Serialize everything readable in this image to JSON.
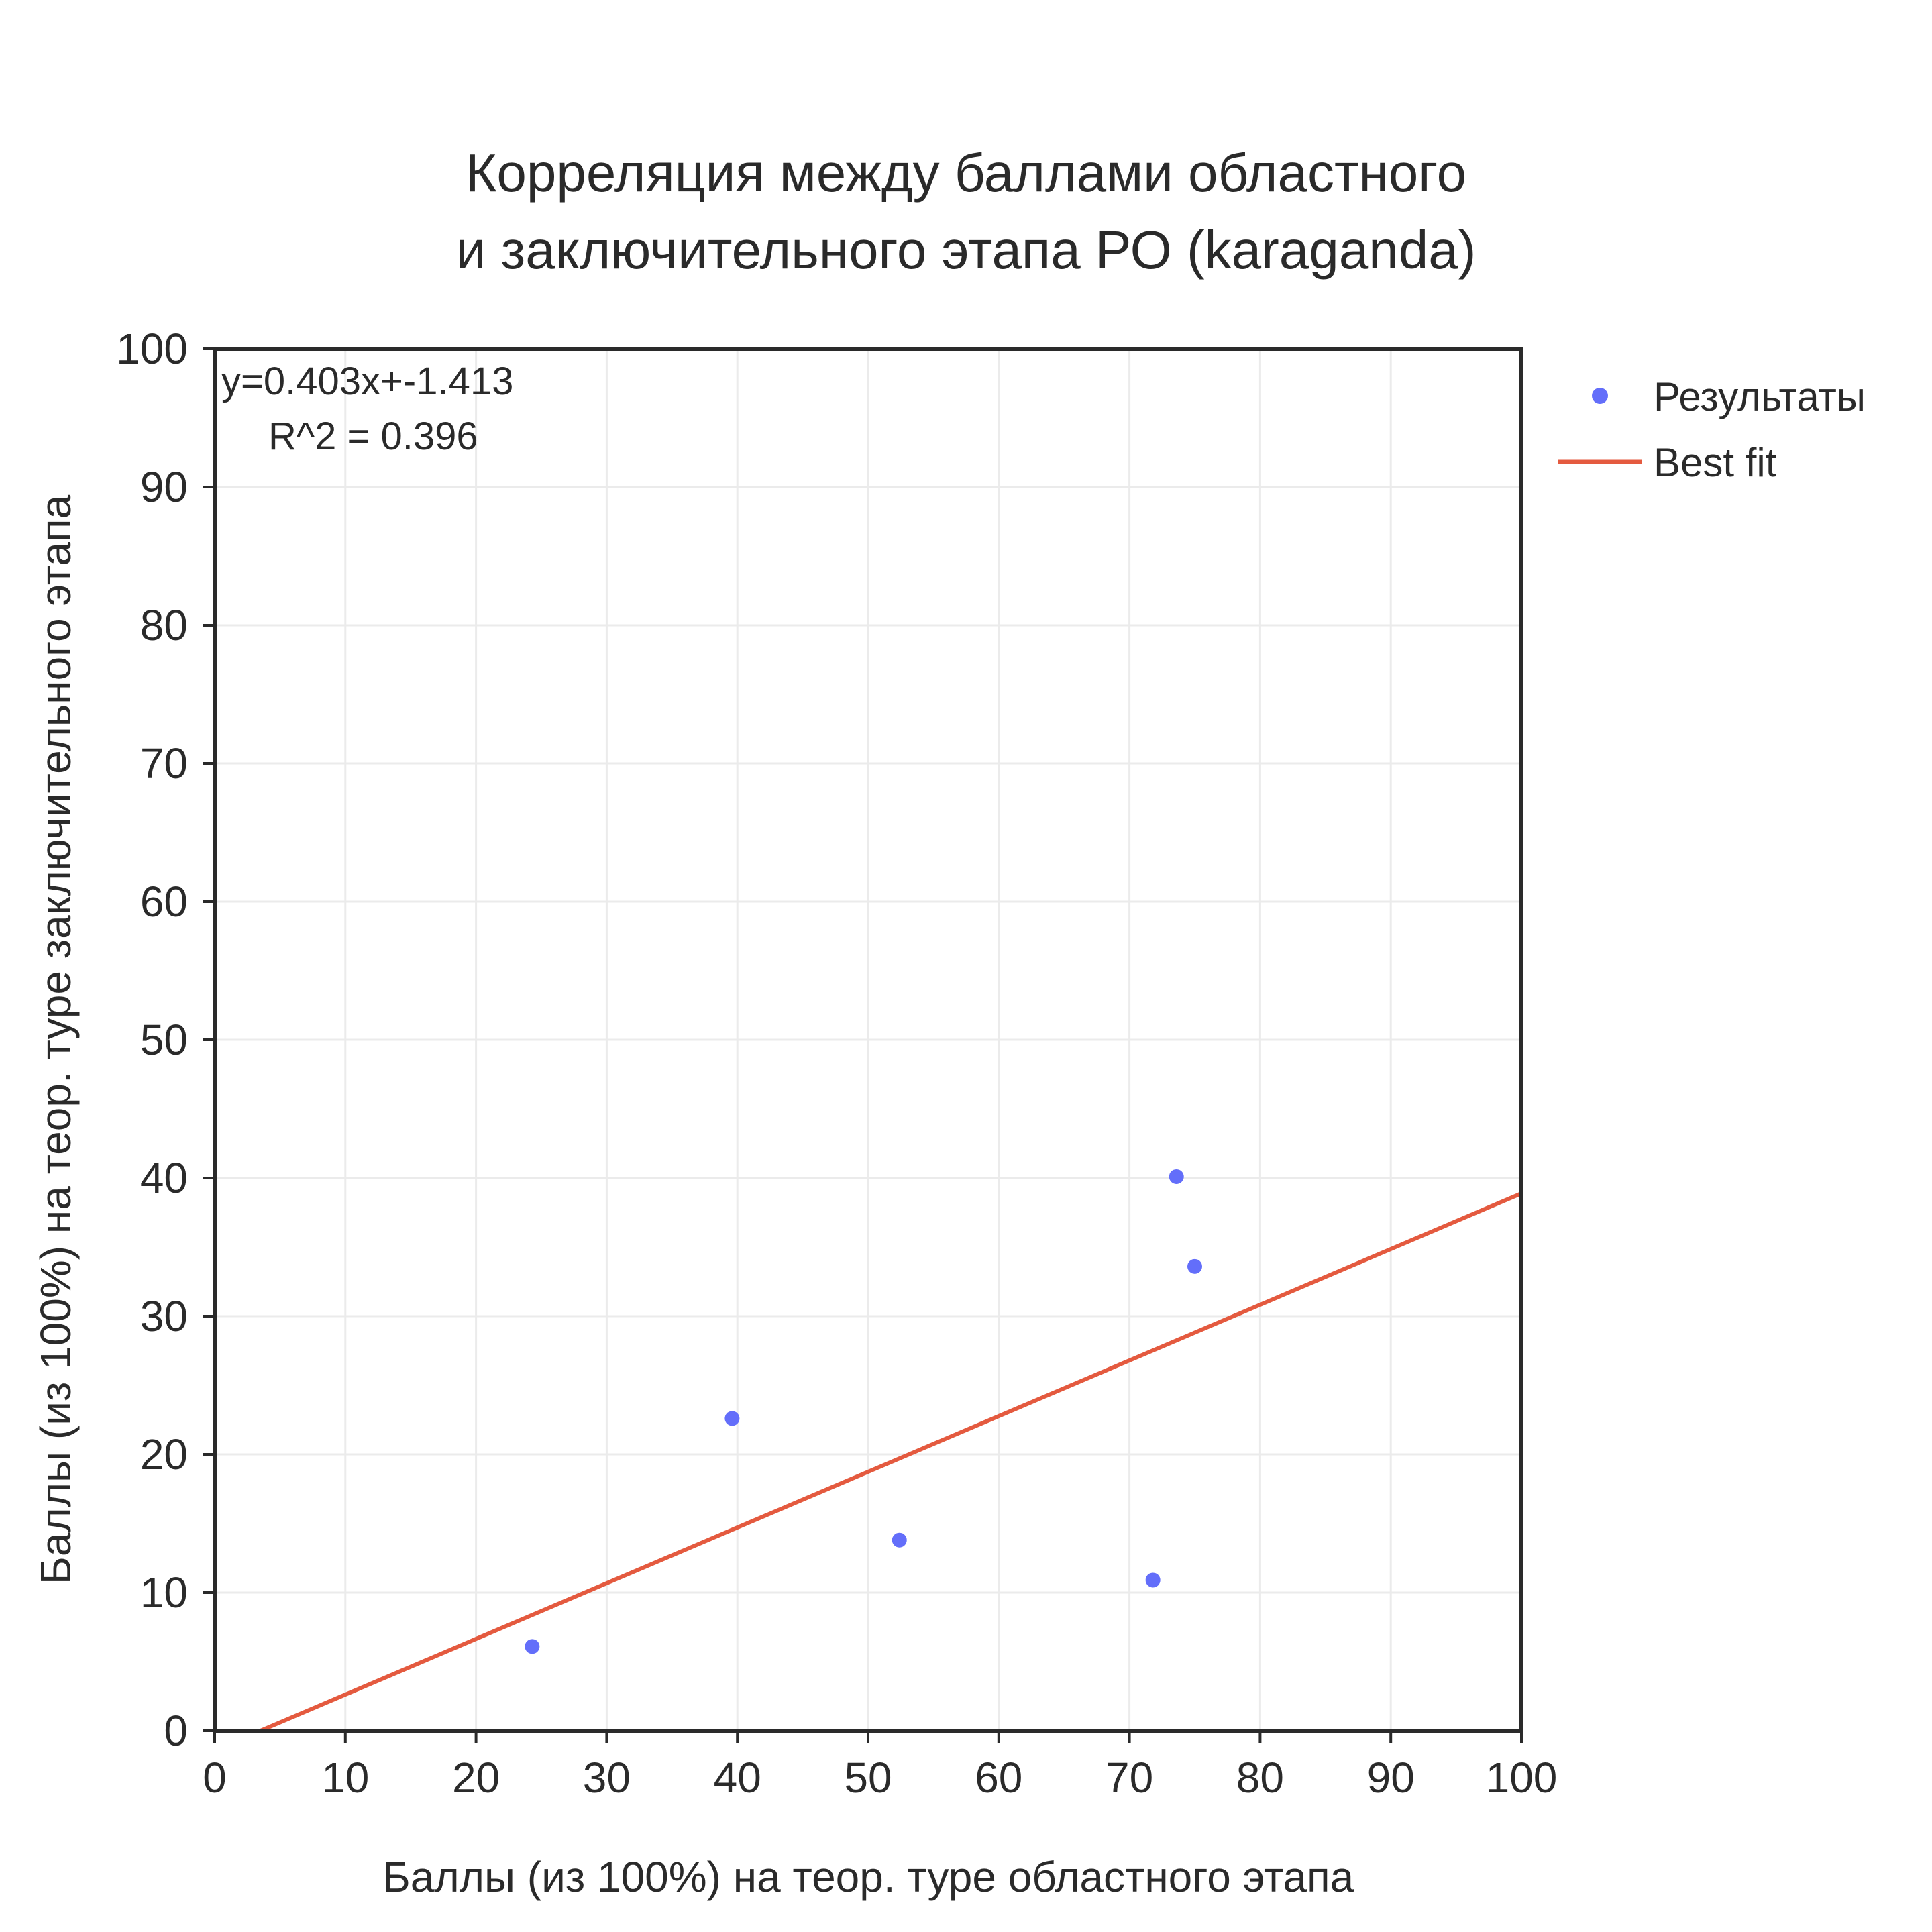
{
  "chart_data": {
    "type": "scatter",
    "title_lines": [
      "Корреляция между баллами областного",
      "и заключительного этапа РО (karaganda)"
    ],
    "xlabel": "Баллы (из 100%) на теор. туре областного этапа",
    "ylabel": "Баллы (из 100%) на теор. туре заключительного этапа",
    "xlim": [
      0,
      100
    ],
    "ylim": [
      0,
      100
    ],
    "xticks": [
      0,
      10,
      20,
      30,
      40,
      50,
      60,
      70,
      80,
      90,
      100
    ],
    "yticks": [
      0,
      10,
      20,
      30,
      40,
      50,
      60,
      70,
      80,
      90,
      100
    ],
    "grid": true,
    "annotation_lines": [
      "y=0.403x+-1.413",
      "R^2 = 0.396"
    ],
    "legend_position": "right",
    "series": [
      {
        "name": "Результаты",
        "kind": "markers",
        "color": "#636efa",
        "x": [
          24.3,
          39.6,
          52.4,
          71.8,
          73.6,
          75.0
        ],
        "y": [
          6.1,
          22.6,
          13.8,
          10.9,
          40.1,
          33.6
        ]
      },
      {
        "name": "Best fit",
        "kind": "line",
        "color": "#e45a3f",
        "slope": 0.403,
        "intercept": -1.413
      }
    ]
  }
}
